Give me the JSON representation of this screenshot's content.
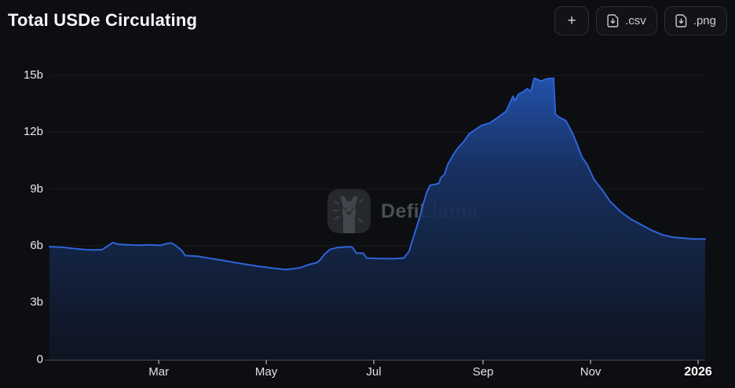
{
  "header": {
    "title": "Total USDe Circulating",
    "buttons": {
      "add_label": "+",
      "csv_label": ".csv",
      "png_label": ".png"
    }
  },
  "watermark": {
    "text": "DefiLlama"
  },
  "chart_data": {
    "type": "area",
    "title": "Total USDe Circulating",
    "unit": "USDe circulating supply, billions",
    "ylim": [
      0,
      15
    ],
    "grid": true,
    "legend": false,
    "x_range": [
      "2024-12-29",
      "2026-01-05"
    ],
    "y_ticks": [
      {
        "value": 0,
        "label": "0"
      },
      {
        "value": 3,
        "label": "3b"
      },
      {
        "value": 6,
        "label": "6b"
      },
      {
        "value": 9,
        "label": "9b"
      },
      {
        "value": 12,
        "label": "12b"
      },
      {
        "value": 15,
        "label": "15b"
      }
    ],
    "x_ticks": [
      {
        "date": "2025-03-01",
        "label": "Mar"
      },
      {
        "date": "2025-05-01",
        "label": "May"
      },
      {
        "date": "2025-07-01",
        "label": "Jul"
      },
      {
        "date": "2025-09-01",
        "label": "Sep"
      },
      {
        "date": "2025-11-01",
        "label": "Nov"
      },
      {
        "date": "2026-01-01",
        "label": "2026",
        "strong": true
      }
    ],
    "colors": {
      "line": "#2e64d9",
      "area_top": "#2458b8",
      "area_mid": "#19346a",
      "area_low": "#12223f",
      "area_bottom": "#0f1524",
      "background": "#0d0e11",
      "axis": "#46494e",
      "tick": "#9a9da1",
      "grid_line": "rgba(255,255,255,0.055)"
    },
    "series": [
      {
        "name": "Total USDe Circulating",
        "points": [
          [
            "2024-12-29",
            5.95
          ],
          [
            "2025-01-05",
            5.92
          ],
          [
            "2025-01-12",
            5.85
          ],
          [
            "2025-01-18",
            5.8
          ],
          [
            "2025-01-24",
            5.78
          ],
          [
            "2025-01-28",
            5.8
          ],
          [
            "2025-02-01",
            6.05
          ],
          [
            "2025-02-03",
            6.17
          ],
          [
            "2025-02-06",
            6.08
          ],
          [
            "2025-02-12",
            6.05
          ],
          [
            "2025-02-18",
            6.03
          ],
          [
            "2025-02-24",
            6.05
          ],
          [
            "2025-03-02",
            6.02
          ],
          [
            "2025-03-06",
            6.12
          ],
          [
            "2025-03-08",
            6.15
          ],
          [
            "2025-03-10",
            6.05
          ],
          [
            "2025-03-12",
            5.9
          ],
          [
            "2025-03-14",
            5.76
          ],
          [
            "2025-03-16",
            5.48
          ],
          [
            "2025-03-23",
            5.45
          ],
          [
            "2025-03-27",
            5.38
          ],
          [
            "2025-04-05",
            5.25
          ],
          [
            "2025-04-14",
            5.1
          ],
          [
            "2025-04-26",
            4.92
          ],
          [
            "2025-05-04",
            4.82
          ],
          [
            "2025-05-12",
            4.74
          ],
          [
            "2025-05-20",
            4.83
          ],
          [
            "2025-05-25",
            5.0
          ],
          [
            "2025-05-30",
            5.12
          ],
          [
            "2025-06-01",
            5.3
          ],
          [
            "2025-06-03",
            5.55
          ],
          [
            "2025-06-06",
            5.8
          ],
          [
            "2025-06-10",
            5.9
          ],
          [
            "2025-06-14",
            5.93
          ],
          [
            "2025-06-18",
            5.95
          ],
          [
            "2025-06-19",
            5.9
          ],
          [
            "2025-06-21",
            5.62
          ],
          [
            "2025-06-25",
            5.6
          ],
          [
            "2025-06-27",
            5.35
          ],
          [
            "2025-07-05",
            5.32
          ],
          [
            "2025-07-13",
            5.32
          ],
          [
            "2025-07-18",
            5.35
          ],
          [
            "2025-07-21",
            5.7
          ],
          [
            "2025-07-23",
            6.3
          ],
          [
            "2025-07-25",
            6.9
          ],
          [
            "2025-07-27",
            7.5
          ],
          [
            "2025-07-29",
            8.2
          ],
          [
            "2025-07-31",
            8.8
          ],
          [
            "2025-08-02",
            9.2
          ],
          [
            "2025-08-05",
            9.25
          ],
          [
            "2025-08-07",
            9.3
          ],
          [
            "2025-08-08",
            9.6
          ],
          [
            "2025-08-10",
            9.75
          ],
          [
            "2025-08-12",
            10.3
          ],
          [
            "2025-08-15",
            10.8
          ],
          [
            "2025-08-18",
            11.2
          ],
          [
            "2025-08-21",
            11.5
          ],
          [
            "2025-08-24",
            11.9
          ],
          [
            "2025-08-27",
            12.1
          ],
          [
            "2025-08-31",
            12.35
          ],
          [
            "2025-09-05",
            12.5
          ],
          [
            "2025-09-09",
            12.75
          ],
          [
            "2025-09-14",
            13.1
          ],
          [
            "2025-09-18",
            13.9
          ],
          [
            "2025-09-19",
            13.65
          ],
          [
            "2025-09-21",
            14.0
          ],
          [
            "2025-09-24",
            14.15
          ],
          [
            "2025-09-26",
            14.3
          ],
          [
            "2025-09-28",
            14.15
          ],
          [
            "2025-09-30",
            14.85
          ],
          [
            "2025-10-04",
            14.7
          ],
          [
            "2025-10-07",
            14.82
          ],
          [
            "2025-10-11",
            14.85
          ],
          [
            "2025-10-12",
            12.95
          ],
          [
            "2025-10-14",
            12.8
          ],
          [
            "2025-10-18",
            12.6
          ],
          [
            "2025-10-22",
            11.9
          ],
          [
            "2025-10-25",
            11.2
          ],
          [
            "2025-10-27",
            10.7
          ],
          [
            "2025-10-30",
            10.3
          ],
          [
            "2025-11-03",
            9.5
          ],
          [
            "2025-11-08",
            8.9
          ],
          [
            "2025-11-12",
            8.35
          ],
          [
            "2025-11-18",
            7.8
          ],
          [
            "2025-11-24",
            7.4
          ],
          [
            "2025-11-30",
            7.1
          ],
          [
            "2025-12-06",
            6.8
          ],
          [
            "2025-12-12",
            6.57
          ],
          [
            "2025-12-18",
            6.45
          ],
          [
            "2025-12-24",
            6.4
          ],
          [
            "2025-12-29",
            6.36
          ],
          [
            "2026-01-05",
            6.36
          ]
        ]
      }
    ]
  }
}
